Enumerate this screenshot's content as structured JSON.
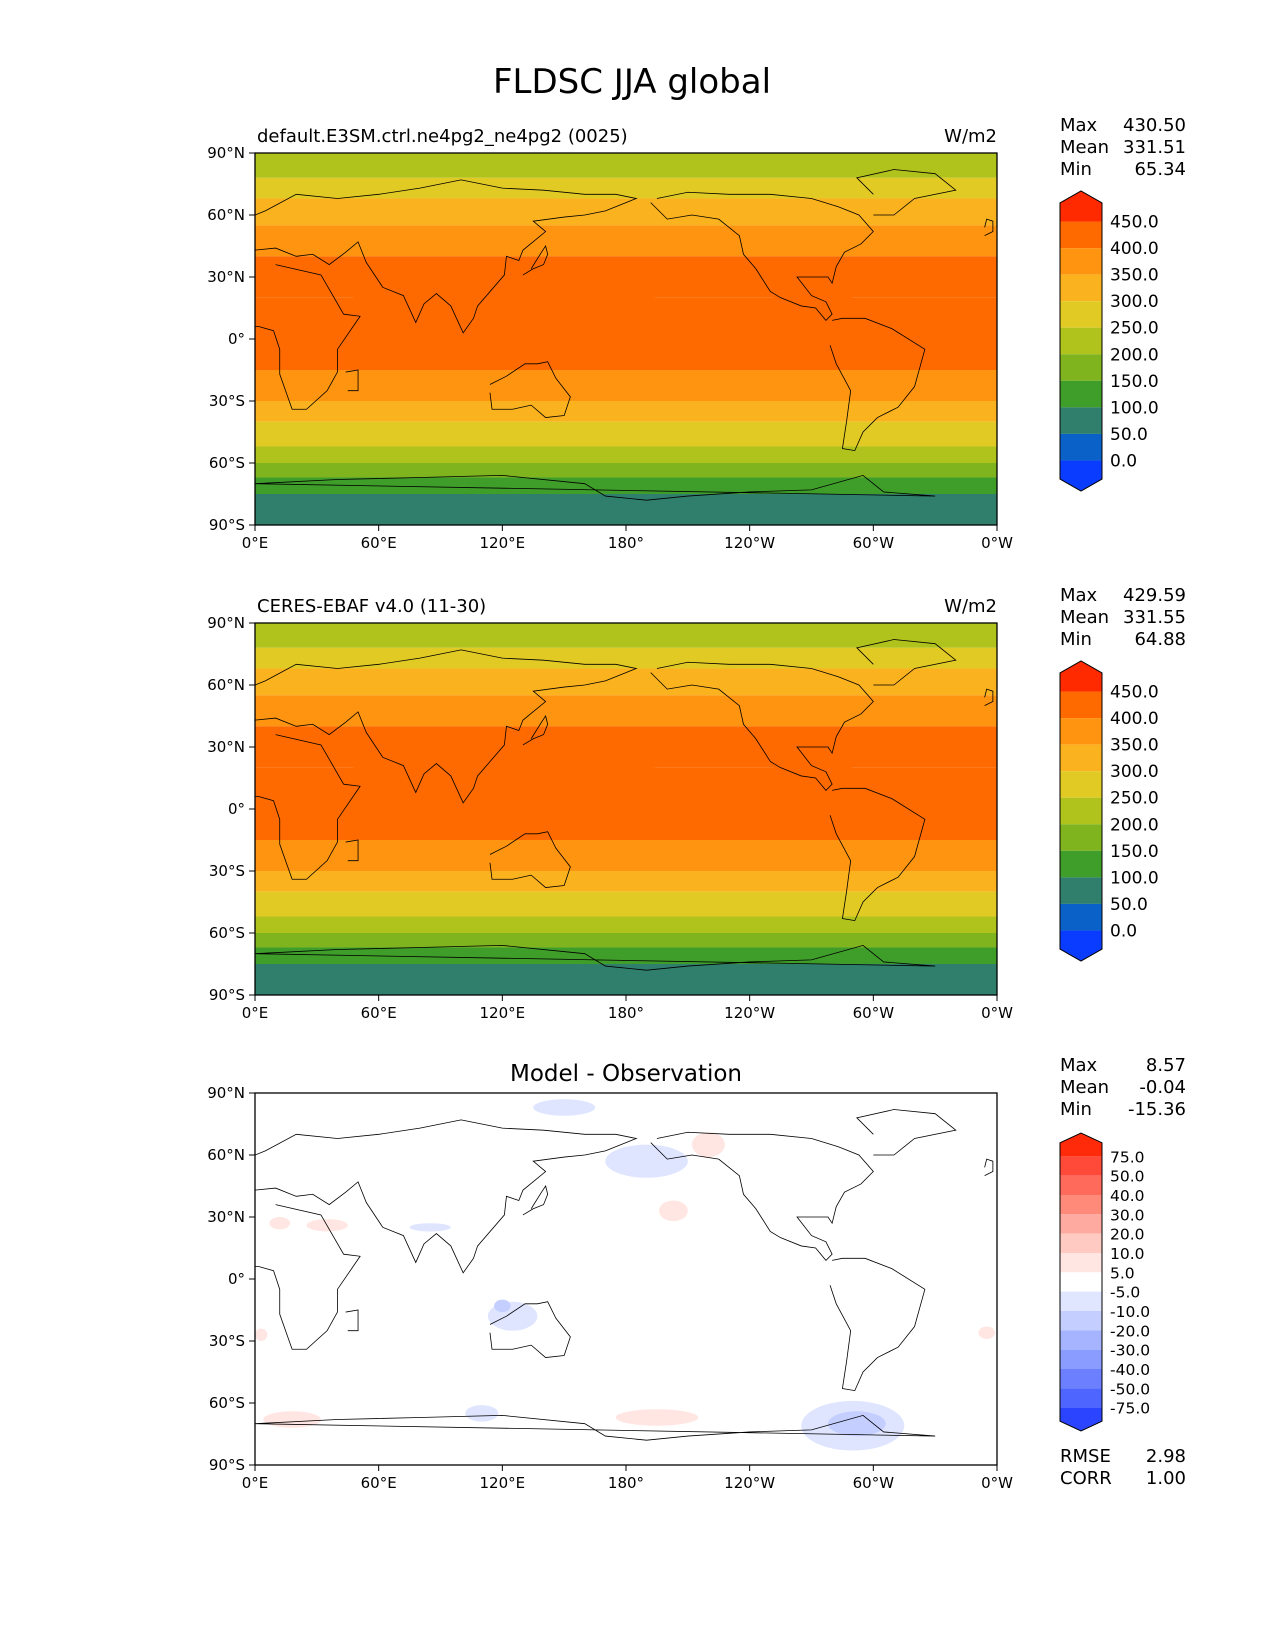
{
  "figure": {
    "title": "FLDSC JJA global"
  },
  "axes": {
    "x_ticks": [
      "0°E",
      "60°E",
      "120°E",
      "180°",
      "120°W",
      "60°W",
      "0°W"
    ],
    "y_ticks": [
      "90°N",
      "60°N",
      "30°N",
      "0°",
      "30°S",
      "60°S",
      "90°S"
    ]
  },
  "panels": [
    {
      "id": "model",
      "title_left": "default.E3SM.ctrl.ne4pg2_ne4pg2 (0025)",
      "title_center": "",
      "units": "W/m2",
      "stats": [
        {
          "label": "Max",
          "value": "430.50"
        },
        {
          "label": "Mean",
          "value": "331.51"
        },
        {
          "label": "Min",
          "value": "65.34"
        }
      ],
      "colorbar": {
        "labels": [
          "450.0",
          "400.0",
          "350.0",
          "300.0",
          "250.0",
          "200.0",
          "150.0",
          "100.0",
          "50.0",
          "0.0"
        ],
        "colors": [
          "#ff2a00",
          "#ff6a00",
          "#ff9410",
          "#fbb21f",
          "#e2ca25",
          "#b0c21c",
          "#80b41f",
          "#3f9d2a",
          "#2f7f6c",
          "#0a62c8",
          "#0a3cff"
        ]
      }
    },
    {
      "id": "obs",
      "title_left": "CERES-EBAF v4.0 (11-30)",
      "title_center": "",
      "units": "W/m2",
      "stats": [
        {
          "label": "Max",
          "value": "429.59"
        },
        {
          "label": "Mean",
          "value": "331.55"
        },
        {
          "label": "Min",
          "value": "64.88"
        }
      ],
      "colorbar": {
        "labels": [
          "450.0",
          "400.0",
          "350.0",
          "300.0",
          "250.0",
          "200.0",
          "150.0",
          "100.0",
          "50.0",
          "0.0"
        ],
        "colors": [
          "#ff2a00",
          "#ff6a00",
          "#ff9410",
          "#fbb21f",
          "#e2ca25",
          "#b0c21c",
          "#80b41f",
          "#3f9d2a",
          "#2f7f6c",
          "#0a62c8",
          "#0a3cff"
        ]
      }
    },
    {
      "id": "diff",
      "title_left": "",
      "title_center": "Model - Observation",
      "units": "",
      "stats": [
        {
          "label": "Max",
          "value": "8.57"
        },
        {
          "label": "Mean",
          "value": "-0.04"
        },
        {
          "label": "Min",
          "value": "-15.36"
        }
      ],
      "extra_stats": [
        {
          "label": "RMSE",
          "value": "2.98"
        },
        {
          "label": "CORR",
          "value": "1.00"
        }
      ],
      "colorbar": {
        "labels": [
          "75.0",
          "50.0",
          "40.0",
          "30.0",
          "20.0",
          "10.0",
          "5.0",
          "-5.0",
          "-10.0",
          "-20.0",
          "-30.0",
          "-40.0",
          "-50.0",
          "-75.0"
        ],
        "colors": [
          "#ff2a0a",
          "#ff4a3a",
          "#ff6a5a",
          "#ff8a7a",
          "#ffaaa0",
          "#ffcac2",
          "#ffe6e2",
          "#ffffff",
          "#e0e6ff",
          "#c4ceff",
          "#a6b4ff",
          "#8a9cff",
          "#6c80ff",
          "#4e66ff",
          "#2a44ff"
        ]
      }
    }
  ]
}
